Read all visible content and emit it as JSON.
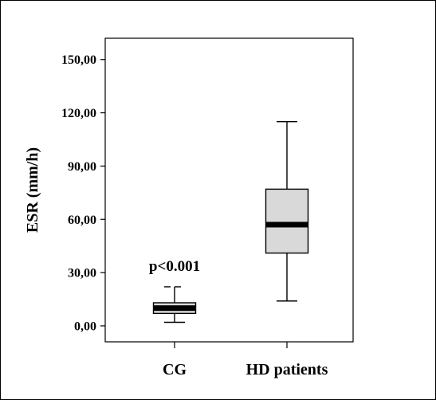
{
  "chart_data": {
    "type": "boxplot",
    "ylabel": "ESR (mm/h)",
    "xlabel": "",
    "ylim": [
      -9,
      162
    ],
    "yticks": [
      0,
      30,
      60,
      90,
      120,
      150
    ],
    "ytick_labels": [
      "0,00",
      "30,00",
      "60,00",
      "90,00",
      "120,00",
      "150,00"
    ],
    "categories": [
      "CG",
      "HD patients"
    ],
    "boxes": [
      {
        "name": "CG",
        "whisker_low": 2,
        "q1": 7,
        "median": 10,
        "q3": 13,
        "whisker_high": 22,
        "fill": "#d9d9d9",
        "whisker_style": "dashed"
      },
      {
        "name": "HD patients",
        "whisker_low": 14,
        "q1": 41,
        "median": 57,
        "q3": 77,
        "whisker_high": 115,
        "fill": "#d9d9d9",
        "whisker_style": "solid"
      }
    ],
    "annotations": [
      {
        "text": "p<0.001",
        "category": "CG",
        "y": 31
      }
    ],
    "grid": false,
    "legend": "none"
  }
}
